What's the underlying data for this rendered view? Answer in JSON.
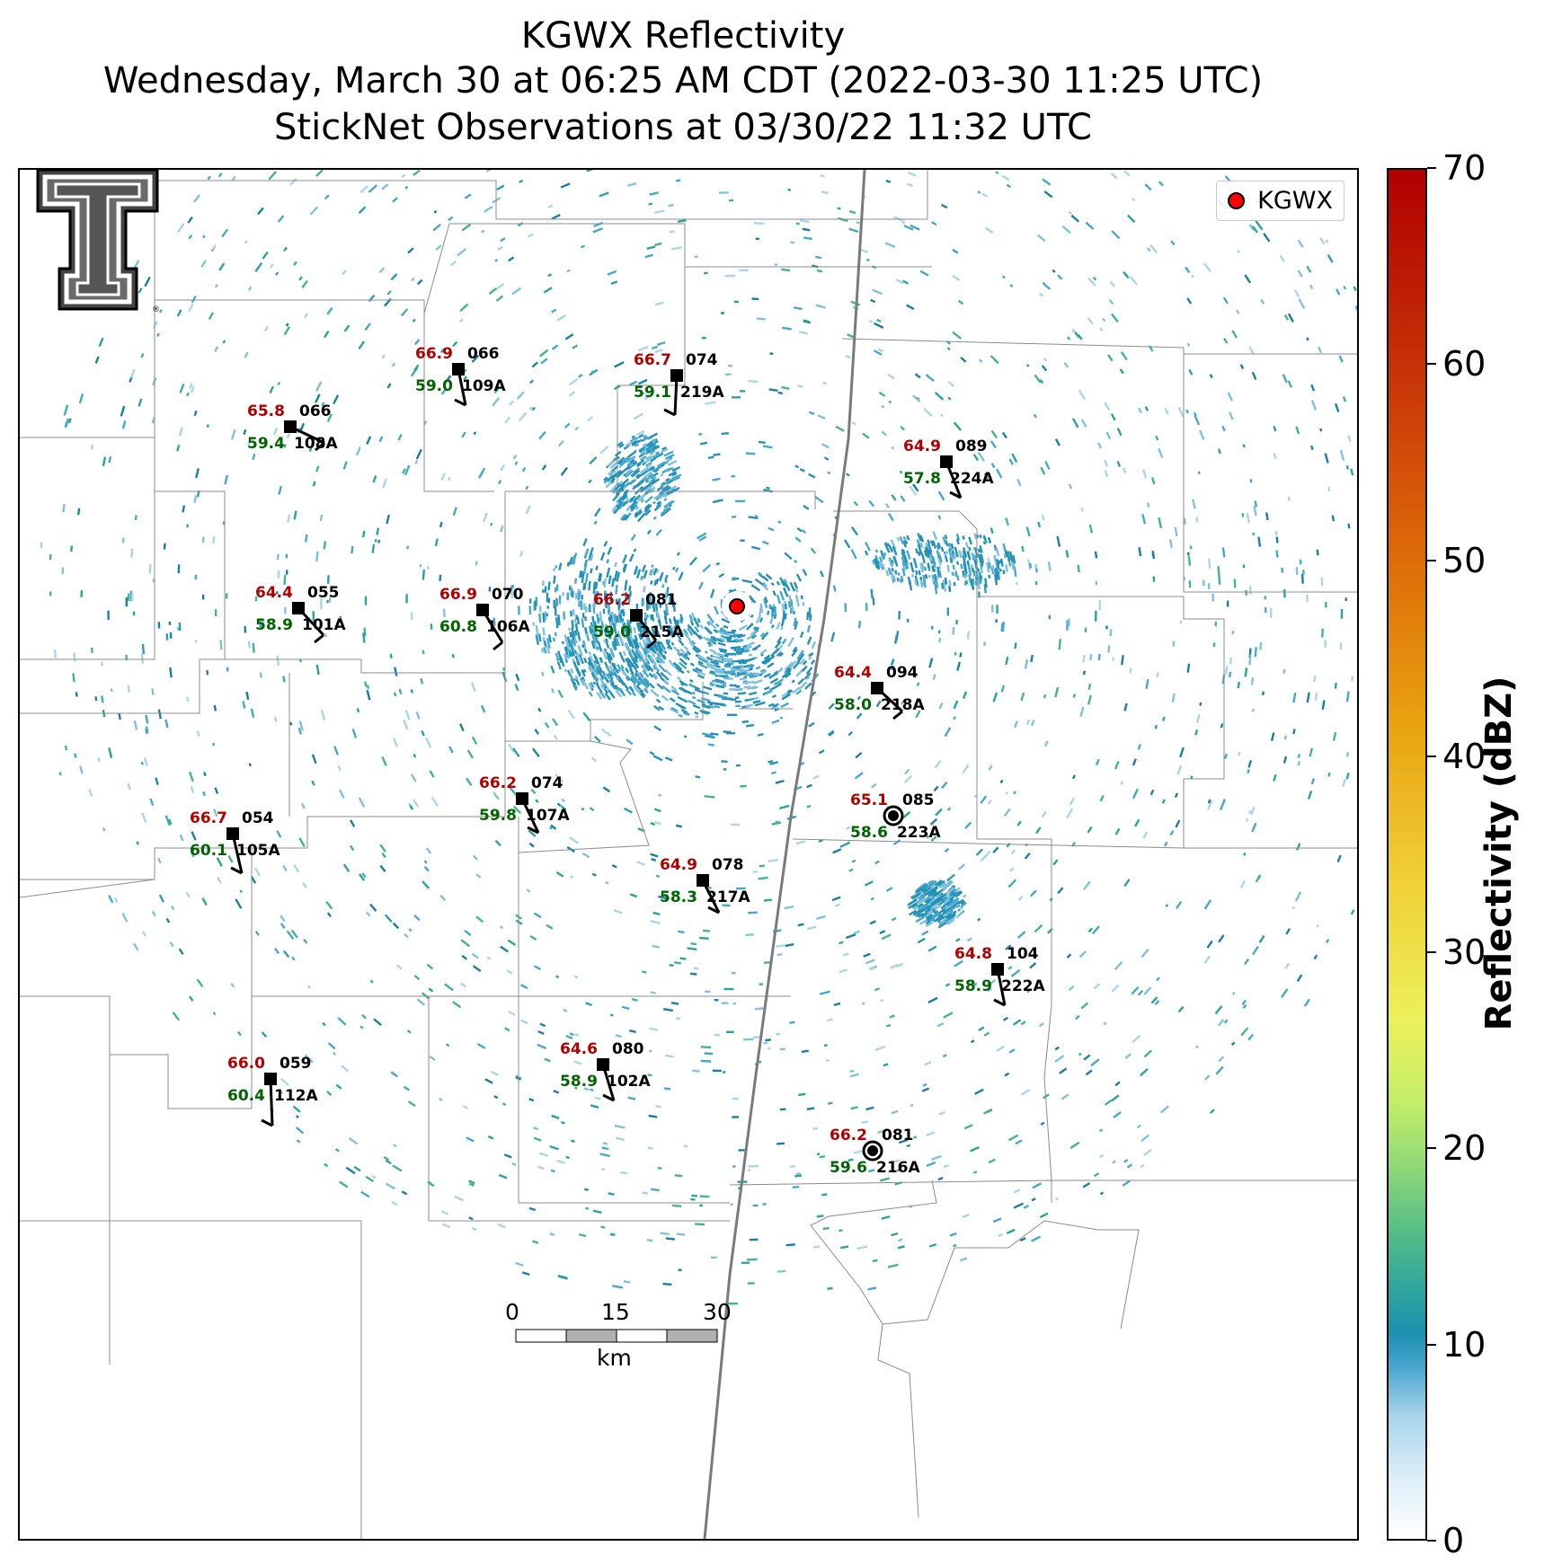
{
  "title": {
    "line1": "KGWX Reflectivity",
    "line2": "Wednesday, March 30 at 06:25 AM CDT (2022-03-30 11:25 UTC)",
    "line3": "StickNet Observations at 03/30/22 11:32 UTC"
  },
  "legend": {
    "label": "KGWX",
    "marker_color": "#ff0000"
  },
  "colorbar": {
    "label": "Reflectivity (dBZ)",
    "ticks": [
      "0",
      "10",
      "20",
      "30",
      "40",
      "50",
      "60",
      "70"
    ],
    "range": [
      0,
      70
    ]
  },
  "scale_bar": {
    "ticks": [
      "0",
      "15",
      "30"
    ],
    "unit": "km"
  },
  "colors": {
    "temperature": "#b00000",
    "dewpoint": "#006400",
    "id": "#000000"
  },
  "stations": [
    {
      "id": "108A",
      "temp": "65.8",
      "dew": "59.4",
      "dir": "066",
      "calm": false
    },
    {
      "id": "109A",
      "temp": "66.9",
      "dew": "59.0",
      "dir": "066",
      "calm": false
    },
    {
      "id": "219A",
      "temp": "66.7",
      "dew": "59.1",
      "dir": "074",
      "calm": false
    },
    {
      "id": "224A",
      "temp": "64.9",
      "dew": "57.8",
      "dir": "089",
      "calm": false
    },
    {
      "id": "101A",
      "temp": "64.4",
      "dew": "58.9",
      "dir": "055",
      "calm": false
    },
    {
      "id": "106A",
      "temp": "66.9",
      "dew": "60.8",
      "dir": "070",
      "calm": false
    },
    {
      "id": "215A",
      "temp": "66.2",
      "dew": "59.0",
      "dir": "081",
      "calm": false
    },
    {
      "id": "218A",
      "temp": "64.4",
      "dew": "58.0",
      "dir": "094",
      "calm": false
    },
    {
      "id": "107A",
      "temp": "66.2",
      "dew": "59.8",
      "dir": "074",
      "calm": false
    },
    {
      "id": "105A",
      "temp": "66.7",
      "dew": "60.1",
      "dir": "054",
      "calm": false
    },
    {
      "id": "223A",
      "temp": "65.1",
      "dew": "58.6",
      "dir": "085",
      "calm": true
    },
    {
      "id": "217A",
      "temp": "64.9",
      "dew": "58.3",
      "dir": "078",
      "calm": false
    },
    {
      "id": "222A",
      "temp": "64.8",
      "dew": "58.9",
      "dir": "104",
      "calm": false
    },
    {
      "id": "102A",
      "temp": "64.6",
      "dew": "58.9",
      "dir": "080",
      "calm": false
    },
    {
      "id": "112A",
      "temp": "66.0",
      "dew": "60.4",
      "dir": "059",
      "calm": false
    },
    {
      "id": "216A",
      "temp": "66.2",
      "dew": "59.6",
      "dir": "081",
      "calm": true
    }
  ]
}
